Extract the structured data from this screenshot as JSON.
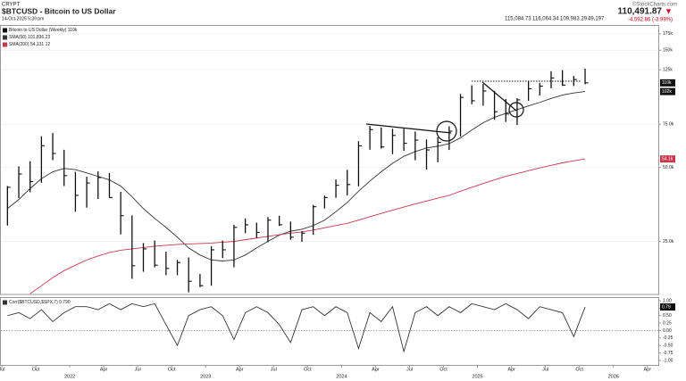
{
  "header": {
    "exchange": "CRYPT",
    "title": "$BTCUSD - Bitcoin to US Dollar",
    "date": "14-Oct-2025 5:39 pm",
    "last": "110,491.87",
    "arrow": "▼",
    "change": "-4,592.86 (-3.99%)",
    "open": "115,084.73",
    "high": "116,064.34",
    "low": "109,983.29",
    "volume": "49,197",
    "brand": "©StockCharts.com"
  },
  "chart_data": [
    {
      "type": "ohlc",
      "log_scale": true,
      "grid": true,
      "ylim": [
        15200,
        188500
      ],
      "yticks": [
        {
          "value": 25000,
          "label": "25.0k"
        },
        {
          "value": 50000,
          "label": "50.0k"
        },
        {
          "value": 75000,
          "label": "75.0k"
        },
        {
          "value": 125000,
          "label": "125k"
        },
        {
          "value": 150000,
          "label": "150k"
        },
        {
          "value": 175000,
          "label": "175k"
        }
      ],
      "x": [
        "2021-07",
        "2021-08",
        "2021-09",
        "2021-10",
        "2021-11",
        "2021-12",
        "2022-01",
        "2022-02",
        "2022-03",
        "2022-04",
        "2022-05",
        "2022-06",
        "2022-07",
        "2022-08",
        "2022-09",
        "2022-10",
        "2022-11",
        "2022-12",
        "2023-01",
        "2023-02",
        "2023-03",
        "2023-04",
        "2023-05",
        "2023-06",
        "2023-07",
        "2023-08",
        "2023-09",
        "2023-10",
        "2023-11",
        "2023-12",
        "2024-01",
        "2024-02",
        "2024-03",
        "2024-04",
        "2024-05",
        "2024-06",
        "2024-07",
        "2024-08",
        "2024-09",
        "2024-10",
        "2024-11",
        "2024-12",
        "2025-01",
        "2025-02",
        "2025-03",
        "2025-04",
        "2025-05",
        "2025-06",
        "2025-07",
        "2025-08",
        "2025-09",
        "2025-10"
      ],
      "price": {
        "name": "Bitcoin to US Dollar (Weekly)",
        "legend_value": "110k",
        "last_label": "110k",
        "color": "#111111",
        "high": [
          42000,
          50500,
          53000,
          67000,
          69000,
          59000,
          48000,
          45800,
          48200,
          47400,
          39800,
          31900,
          24600,
          25200,
          22700,
          21000,
          21500,
          18400,
          23900,
          25200,
          29200,
          31000,
          29800,
          31400,
          31800,
          30100,
          27500,
          35200,
          38400,
          44700,
          48900,
          64000,
          73800,
          72700,
          71900,
          71900,
          70000,
          65000,
          66400,
          73600,
          99600,
          108000,
          109300,
          102500,
          95000,
          95700,
          111900,
          110500,
          123200,
          124500,
          117900,
          126200
        ],
        "low": [
          29000,
          37500,
          39600,
          43300,
          53500,
          42000,
          33000,
          34300,
          37200,
          37600,
          26700,
          17600,
          18800,
          19600,
          18200,
          18200,
          15500,
          16300,
          16500,
          21400,
          19600,
          27000,
          25800,
          24800,
          28900,
          25400,
          24900,
          26600,
          34000,
          37600,
          38500,
          41900,
          59000,
          59600,
          56600,
          58400,
          53500,
          49000,
          52500,
          58900,
          66800,
          90500,
          89200,
          78200,
          76600,
          74400,
          93300,
          98200,
          105100,
          107400,
          107300,
          109000
        ],
        "close": [
          41500,
          47000,
          43800,
          61300,
          57000,
          46300,
          38500,
          43200,
          45500,
          37700,
          31800,
          19900,
          23300,
          20000,
          19400,
          20500,
          17200,
          16500,
          23100,
          23100,
          28500,
          29200,
          27200,
          30500,
          29200,
          26000,
          27000,
          34600,
          37700,
          42300,
          42600,
          61200,
          71300,
          60600,
          67500,
          62700,
          64600,
          58900,
          63300,
          70200,
          96400,
          93400,
          102400,
          84300,
          82500,
          94200,
          104600,
          107100,
          115700,
          108200,
          114000,
          110491.87
        ]
      },
      "series": [
        {
          "name": "SMA(50)",
          "legend_value": "101,836.23",
          "last_label": "102k",
          "color": "#333333",
          "values": [
            34000,
            37000,
            41000,
            45000,
            48000,
            49500,
            49000,
            47500,
            46000,
            44500,
            42000,
            38000,
            34000,
            31000,
            28500,
            26000,
            23500,
            22000,
            21000,
            20800,
            21000,
            22000,
            23500,
            25000,
            26500,
            27500,
            28000,
            29000,
            30500,
            33000,
            36000,
            40000,
            44000,
            48000,
            52000,
            55500,
            58000,
            60000,
            61000,
            62500,
            66000,
            71000,
            76000,
            80000,
            83000,
            86000,
            89000,
            92000,
            95500,
            98500,
            100500,
            101836.23
          ]
        },
        {
          "name": "SMA(200)",
          "legend_value": "54,131.12",
          "last_label": "54.1k",
          "color": "#c8384d",
          "values": [
            null,
            null,
            15300,
            16500,
            17800,
            19000,
            20000,
            21000,
            21800,
            22500,
            23000,
            23300,
            23600,
            23900,
            24100,
            24300,
            24400,
            24500,
            24600,
            24800,
            25000,
            25400,
            25800,
            26200,
            26600,
            27000,
            27300,
            27800,
            28400,
            29000,
            29600,
            30500,
            31500,
            32500,
            33500,
            34500,
            35500,
            36500,
            37500,
            38500,
            40000,
            41500,
            43000,
            44500,
            46000,
            47200,
            48500,
            49800,
            51000,
            52200,
            53200,
            54131.12
          ]
        }
      ]
    },
    {
      "type": "line",
      "ylim": [
        -1.18,
        1.09
      ],
      "yticks": [
        {
          "value": 1,
          "label": "1.00"
        },
        {
          "value": 0.75,
          "label": "0.75"
        },
        {
          "value": 0.5,
          "label": "0.50"
        },
        {
          "value": 0.25,
          "label": "0.25"
        },
        {
          "value": 0,
          "label": "0.00"
        },
        {
          "value": -0.25,
          "label": "-0.25"
        },
        {
          "value": -0.5,
          "label": "-0.50"
        },
        {
          "value": -0.75,
          "label": "-0.75"
        },
        {
          "value": -1,
          "label": "-1.00"
        }
      ],
      "x": [
        "2021-07",
        "2021-08",
        "2021-09",
        "2021-10",
        "2021-11",
        "2021-12",
        "2022-01",
        "2022-02",
        "2022-03",
        "2022-04",
        "2022-05",
        "2022-06",
        "2022-07",
        "2022-08",
        "2022-09",
        "2022-10",
        "2022-11",
        "2022-12",
        "2023-01",
        "2023-02",
        "2023-03",
        "2023-04",
        "2023-05",
        "2023-06",
        "2023-07",
        "2023-08",
        "2023-09",
        "2023-10",
        "2023-11",
        "2023-12",
        "2024-01",
        "2024-02",
        "2024-03",
        "2024-04",
        "2024-05",
        "2024-06",
        "2024-07",
        "2024-08",
        "2024-09",
        "2024-10",
        "2024-11",
        "2024-12",
        "2025-01",
        "2025-02",
        "2025-03",
        "2025-04",
        "2025-05",
        "2025-06",
        "2025-07",
        "2025-08",
        "2025-09",
        "2025-10"
      ],
      "xticks": [
        {
          "value": "2021-07",
          "label": "Jul"
        },
        {
          "value": "2021-10",
          "label": "Oct"
        },
        {
          "value": "2022-01",
          "label": "2022"
        },
        {
          "value": "2022-04",
          "label": "Apr"
        },
        {
          "value": "2022-07",
          "label": "Jul"
        },
        {
          "value": "2022-10",
          "label": "Oct"
        },
        {
          "value": "2023-01",
          "label": "2023"
        },
        {
          "value": "2023-04",
          "label": "Apr"
        },
        {
          "value": "2023-07",
          "label": "Jul"
        },
        {
          "value": "2023-10",
          "label": "Oct"
        },
        {
          "value": "2024-01",
          "label": "2024"
        },
        {
          "value": "2024-04",
          "label": "Apr"
        },
        {
          "value": "2024-07",
          "label": "Jul"
        },
        {
          "value": "2024-10",
          "label": "Oct"
        },
        {
          "value": "2025-01",
          "label": "2025"
        },
        {
          "value": "2025-04",
          "label": "Apr"
        },
        {
          "value": "2025-07",
          "label": "Jul"
        },
        {
          "value": "2025-10",
          "label": "Oct"
        },
        {
          "value": "2026-01",
          "label": "2026"
        },
        {
          "value": "2026-04",
          "label": "Apr"
        }
      ],
      "series": [
        {
          "name": "Corr($BTCUSD,$SPX,7)",
          "legend_value": "0.790",
          "last_label": "0.79",
          "color": "#333333",
          "values": [
            0.5,
            0.6,
            0.4,
            0.7,
            0.3,
            0.6,
            0.8,
            0.8,
            0.7,
            0.9,
            0.7,
            0.9,
            0.8,
            0.9,
            0.2,
            -0.5,
            0.5,
            0.7,
            0.8,
            0.5,
            -0.3,
            0.6,
            0.8,
            0.6,
            0.2,
            -0.4,
            0.7,
            0.8,
            0.5,
            0.8,
            0.6,
            -0.6,
            0.6,
            0.3,
            0.8,
            -0.7,
            0.6,
            0.8,
            0.5,
            0.8,
            0.6,
            0.9,
            0.8,
            0.7,
            0.9,
            0.7,
            0.4,
            0.8,
            0.7,
            0.6,
            -0.2,
            0.79
          ]
        }
      ]
    }
  ]
}
